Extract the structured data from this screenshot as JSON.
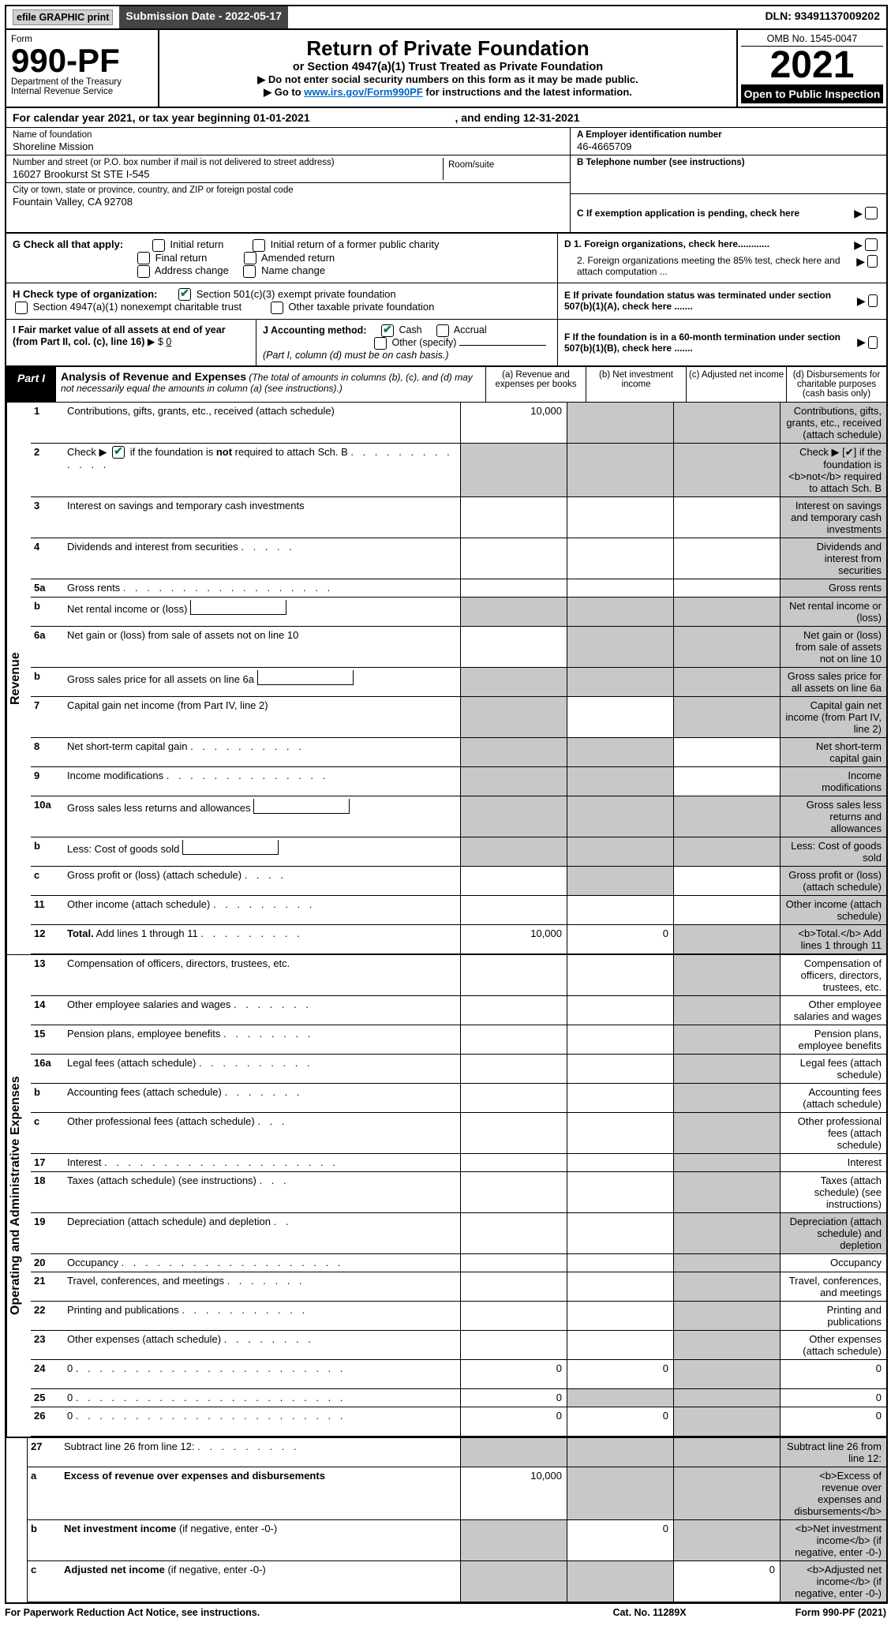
{
  "top": {
    "efile": "efile GRAPHIC print",
    "submission_label": "Submission Date - 2022-05-17",
    "dln": "DLN: 93491137009202"
  },
  "header": {
    "form_word": "Form",
    "form_number": "990-PF",
    "dept": "Department of the Treasury",
    "irs": "Internal Revenue Service",
    "title": "Return of Private Foundation",
    "subtitle": "or Section 4947(a)(1) Trust Treated as Private Foundation",
    "instr1": "▶ Do not enter social security numbers on this form as it may be made public.",
    "instr2_pre": "▶ Go to ",
    "instr2_link": "www.irs.gov/Form990PF",
    "instr2_post": " for instructions and the latest information.",
    "omb": "OMB No. 1545-0047",
    "year": "2021",
    "inspection": "Open to Public Inspection"
  },
  "calendar": {
    "pre": "For calendar year 2021, or tax year beginning ",
    "begin": "01-01-2021",
    "mid": " , and ending ",
    "end": "12-31-2021"
  },
  "entity": {
    "name_label": "Name of foundation",
    "name": "Shoreline Mission",
    "ein_label": "A Employer identification number",
    "ein": "46-4665709",
    "addr_label": "Number and street (or P.O. box number if mail is not delivered to street address)",
    "addr": "16027 Brookurst St STE I-545",
    "room_label": "Room/suite",
    "tel_label": "B Telephone number (see instructions)",
    "city_label": "City or town, state or province, country, and ZIP or foreign postal code",
    "city": "Fountain Valley, CA  92708",
    "c_label": "C If exemption application is pending, check here"
  },
  "checks": {
    "g_label": "G Check all that apply:",
    "initial": "Initial return",
    "initial_former": "Initial return of a former public charity",
    "final": "Final return",
    "amended": "Amended return",
    "addr_change": "Address change",
    "name_change": "Name change",
    "d1": "D 1. Foreign organizations, check here............",
    "d2": "2. Foreign organizations meeting the 85% test, check here and attach computation ...",
    "h_label": "H Check type of organization:",
    "h_501c3": "Section 501(c)(3) exempt private foundation",
    "h_4947": "Section 4947(a)(1) nonexempt charitable trust",
    "h_other": "Other taxable private foundation",
    "e_label": "E  If private foundation status was terminated under section 507(b)(1)(A), check here .......",
    "i_label": "I Fair market value of all assets at end of year (from Part II, col. (c), line 16)",
    "i_value": "0",
    "j_label": "J Accounting method:",
    "j_cash": "Cash",
    "j_accrual": "Accrual",
    "j_other": "Other (specify)",
    "j_note": "(Part I, column (d) must be on cash basis.)",
    "f_label": "F  If the foundation is in a 60-month termination under section 507(b)(1)(B), check here ......."
  },
  "part1": {
    "label": "Part I",
    "title": "Analysis of Revenue and Expenses",
    "note": "(The total of amounts in columns (b), (c), and (d) may not necessarily equal the amounts in column (a) (see instructions).)",
    "col_a": "(a)   Revenue and expenses per books",
    "col_b": "(b)   Net investment income",
    "col_c": "(c)   Adjusted net income",
    "col_d": "(d)  Disbursements for charitable purposes (cash basis only)"
  },
  "sides": {
    "revenue": "Revenue",
    "opex": "Operating and Administrative Expenses"
  },
  "rows": [
    {
      "n": "1",
      "d": "Contributions, gifts, grants, etc., received (attach schedule)",
      "a": "10,000",
      "shade": [
        "b",
        "c",
        "d"
      ],
      "tall": true
    },
    {
      "n": "2",
      "d": "Check ▶ [✔] if the foundation is <b>not</b> required to attach Sch. B",
      "shade": [
        "a",
        "b",
        "c",
        "d"
      ],
      "tall": true,
      "checkline": true
    },
    {
      "n": "3",
      "d": "Interest on savings and temporary cash investments",
      "shade": [
        "d"
      ]
    },
    {
      "n": "4",
      "d": "Dividends and interest from securities",
      "shade": [
        "d"
      ]
    },
    {
      "n": "5a",
      "d": "Gross rents",
      "shade": [
        "d"
      ]
    },
    {
      "n": "b",
      "d": "Net rental income or (loss)",
      "inner": true,
      "shade": [
        "a",
        "b",
        "c",
        "d"
      ]
    },
    {
      "n": "6a",
      "d": "Net gain or (loss) from sale of assets not on line 10",
      "shade": [
        "b",
        "c",
        "d"
      ]
    },
    {
      "n": "b",
      "d": "Gross sales price for all assets on line 6a",
      "inner": true,
      "shade": [
        "a",
        "b",
        "c",
        "d"
      ]
    },
    {
      "n": "7",
      "d": "Capital gain net income (from Part IV, line 2)",
      "shade": [
        "a",
        "c",
        "d"
      ]
    },
    {
      "n": "8",
      "d": "Net short-term capital gain",
      "shade": [
        "a",
        "b",
        "d"
      ]
    },
    {
      "n": "9",
      "d": "Income modifications",
      "shade": [
        "a",
        "b",
        "d"
      ]
    },
    {
      "n": "10a",
      "d": "Gross sales less returns and allowances",
      "inner": true,
      "shade": [
        "a",
        "b",
        "c",
        "d"
      ]
    },
    {
      "n": "b",
      "d": "Less: Cost of goods sold",
      "inner": true,
      "shade": [
        "a",
        "b",
        "c",
        "d"
      ]
    },
    {
      "n": "c",
      "d": "Gross profit or (loss) (attach schedule)",
      "shade": [
        "b",
        "d"
      ]
    },
    {
      "n": "11",
      "d": "Other income (attach schedule)",
      "shade": [
        "d"
      ]
    },
    {
      "n": "12",
      "d": "<b>Total.</b> Add lines 1 through 11",
      "a": "10,000",
      "b": "0",
      "shade": [
        "c",
        "d"
      ]
    }
  ],
  "exprows": [
    {
      "n": "13",
      "d": "Compensation of officers, directors, trustees, etc.",
      "shade": [
        "c"
      ]
    },
    {
      "n": "14",
      "d": "Other employee salaries and wages",
      "shade": [
        "c"
      ]
    },
    {
      "n": "15",
      "d": "Pension plans, employee benefits",
      "shade": [
        "c"
      ]
    },
    {
      "n": "16a",
      "d": "Legal fees (attach schedule)",
      "shade": [
        "c"
      ]
    },
    {
      "n": "b",
      "d": "Accounting fees (attach schedule)",
      "shade": [
        "c"
      ]
    },
    {
      "n": "c",
      "d": "Other professional fees (attach schedule)",
      "shade": [
        "c"
      ]
    },
    {
      "n": "17",
      "d": "Interest",
      "shade": [
        "c"
      ]
    },
    {
      "n": "18",
      "d": "Taxes (attach schedule) (see instructions)",
      "shade": [
        "c"
      ]
    },
    {
      "n": "19",
      "d": "Depreciation (attach schedule) and depletion",
      "shade": [
        "c",
        "d"
      ]
    },
    {
      "n": "20",
      "d": "Occupancy",
      "shade": [
        "c"
      ]
    },
    {
      "n": "21",
      "d": "Travel, conferences, and meetings",
      "shade": [
        "c"
      ]
    },
    {
      "n": "22",
      "d": "Printing and publications",
      "shade": [
        "c"
      ]
    },
    {
      "n": "23",
      "d": "Other expenses (attach schedule)",
      "shade": [
        "c"
      ]
    },
    {
      "n": "24",
      "d": "0",
      "a": "0",
      "b": "0",
      "shade": [
        "c"
      ],
      "tall": true
    },
    {
      "n": "25",
      "d": "0",
      "a": "0",
      "shade": [
        "b",
        "c"
      ]
    },
    {
      "n": "26",
      "d": "0",
      "a": "0",
      "b": "0",
      "shade": [
        "c"
      ],
      "tall": true
    }
  ],
  "finalrows": [
    {
      "n": "27",
      "d": "Subtract line 26 from line 12:",
      "shade": [
        "a",
        "b",
        "c",
        "d"
      ]
    },
    {
      "n": "a",
      "d": "<b>Excess of revenue over expenses and disbursements</b>",
      "a": "10,000",
      "shade": [
        "b",
        "c",
        "d"
      ],
      "tall": true
    },
    {
      "n": "b",
      "d": "<b>Net investment income</b> (if negative, enter -0-)",
      "b": "0",
      "shade": [
        "a",
        "c",
        "d"
      ]
    },
    {
      "n": "c",
      "d": "<b>Adjusted net income</b> (if negative, enter -0-)",
      "c": "0",
      "shade": [
        "a",
        "b",
        "d"
      ]
    }
  ],
  "footer": {
    "pra": "For Paperwork Reduction Act Notice, see instructions.",
    "cat": "Cat. No. 11289X",
    "form": "Form 990-PF (2021)"
  }
}
